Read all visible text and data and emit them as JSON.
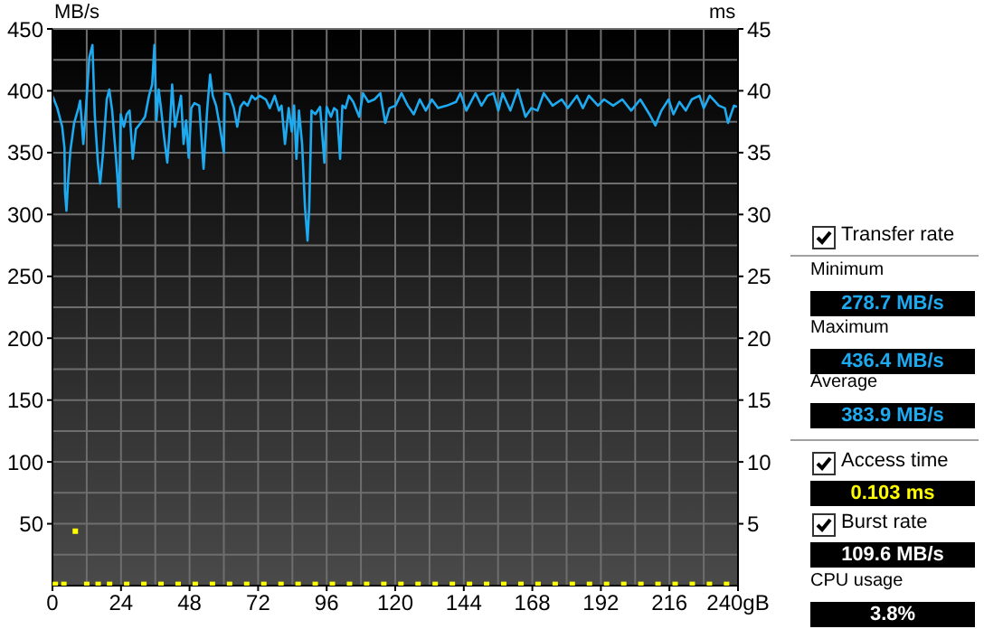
{
  "chart_data": {
    "type": "line",
    "ylabel": "MB/s",
    "y2label": "ms",
    "xlim": [
      0,
      240
    ],
    "xticks": [
      0,
      24,
      48,
      72,
      96,
      120,
      144,
      168,
      192,
      216,
      {
        "value": 240,
        "label": "240gB"
      }
    ],
    "ylim": [
      0,
      450
    ],
    "yticks": [
      50,
      100,
      150,
      200,
      250,
      300,
      350,
      400,
      450
    ],
    "y2lim": [
      0,
      45
    ],
    "y2ticks": [
      5,
      10,
      15,
      20,
      25,
      30,
      35,
      40,
      45
    ],
    "grid": true,
    "legend": false,
    "series": [
      {
        "color": "#1eaaf0",
        "x": [
          0,
          1.7,
          3.4,
          4.2,
          4.4,
          4.9,
          5.5,
          6.3,
          7.6,
          9.1,
          9.7,
          10.8,
          11.8,
          12.9,
          14,
          14.8,
          15.9,
          16.7,
          17.6,
          19,
          19.9,
          20.9,
          22.2,
          22.8,
          23.3,
          23.9,
          25,
          26,
          27,
          28.1,
          29.2,
          30.9,
          32.4,
          33.8,
          34.9,
          35.7,
          36.4,
          37.2,
          38,
          39.1,
          40.2,
          41,
          41.9,
          42.9,
          44,
          45,
          45.9,
          46.8,
          47.7,
          48.6,
          49.7,
          51.4,
          52.9,
          54.2,
          55.2,
          56.1,
          57.3,
          58.6,
          60,
          60.3,
          62,
          63.5,
          64.7,
          65.8,
          67,
          68.3,
          69.8,
          71,
          72.5,
          74.7,
          76.1,
          77.8,
          79.3,
          80.2,
          81.4,
          82.7,
          83.8,
          84.6,
          85.4,
          86.3,
          87.4,
          88.4,
          89.3,
          89.9,
          90.7,
          92,
          93.7,
          95.2,
          96,
          97.5,
          98.6,
          99.6,
          100.7,
          101.5,
          102.6,
          103.8,
          105.3,
          107.4,
          108.7,
          110.6,
          112.7,
          114.8,
          116.5,
          118,
          120.1,
          122.2,
          124.4,
          126.5,
          128.6,
          130.7,
          132.8,
          135,
          138.1,
          141.3,
          142.8,
          144.9,
          148.1,
          150.2,
          152.3,
          154.4,
          156.1,
          157.6,
          160.3,
          162.9,
          165.6,
          167.7,
          169.8,
          172,
          175.1,
          178.3,
          180.4,
          183.6,
          185.7,
          187.8,
          191,
          193.1,
          196.3,
          199.5,
          202.6,
          205.8,
          209,
          211.1,
          213.2,
          215.7,
          217.4,
          219.5,
          221.7,
          223.8,
          226.5,
          228,
          230.1,
          233.3,
          235.4,
          236.5,
          238.6,
          239.6
        ],
        "values": [
          396,
          386,
          371,
          354,
          318,
          303,
          328,
          352,
          374,
          386,
          392,
          357,
          388,
          427,
          437,
          381,
          342,
          325,
          347,
          393,
          401,
          384,
          347,
          328,
          306,
          381,
          371,
          381,
          384,
          345,
          369,
          374,
          379,
          396,
          405,
          437,
          376,
          401,
          386,
          362,
          342,
          367,
          405,
          371,
          384,
          396,
          357,
          376,
          346,
          386,
          390,
          388,
          337,
          386,
          413,
          396,
          388,
          371,
          350,
          398,
          397,
          386,
          371,
          387,
          391,
          388,
          396,
          393,
          396,
          393,
          386,
          396,
          384,
          388,
          357,
          386,
          367,
          388,
          345,
          384,
          357,
          306,
          279,
          306,
          384,
          381,
          387,
          342,
          387,
          379,
          386,
          384,
          345,
          388,
          386,
          396,
          391,
          379,
          398,
          391,
          393,
          398,
          374,
          386,
          388,
          398,
          388,
          381,
          393,
          384,
          393,
          386,
          388,
          391,
          398,
          384,
          398,
          388,
          396,
          398,
          384,
          398,
          384,
          401,
          379,
          386,
          384,
          398,
          388,
          393,
          386,
          396,
          386,
          396,
          388,
          393,
          388,
          393,
          384,
          393,
          381,
          372,
          384,
          393,
          381,
          391,
          384,
          393,
          396,
          386,
          396,
          388,
          386,
          374,
          388,
          387
        ]
      },
      {
        "type": "scatter",
        "axis": "y2",
        "color": "#ffff00",
        "marker": "square",
        "x": [
          1,
          4,
          8,
          12,
          16,
          20,
          26,
          32,
          38,
          44,
          50,
          56,
          62,
          68,
          74,
          80,
          86,
          92,
          98,
          104,
          110,
          116,
          122,
          128,
          134,
          140,
          146,
          152,
          158,
          164,
          170,
          176,
          182,
          188,
          194,
          200,
          206,
          212,
          218,
          224,
          230,
          236
        ],
        "values": [
          0.1,
          0.1,
          4.4,
          0.1,
          0.1,
          0.1,
          0.1,
          0.1,
          0.1,
          0.1,
          0.1,
          0.1,
          0.1,
          0.1,
          0.1,
          0.1,
          0.1,
          0.1,
          0.1,
          0.1,
          0.1,
          0.1,
          0.1,
          0.1,
          0.1,
          0.1,
          0.1,
          0.1,
          0.1,
          0.1,
          0.1,
          0.1,
          0.1,
          0.1,
          0.1,
          0.1,
          0.1,
          0.1,
          0.1,
          0.1,
          0.1,
          0.1
        ]
      }
    ],
    "annotations": [
      "Transfer rate",
      "Minimum",
      "278.7 MB/s",
      "Maximum",
      "436.4 MB/s",
      "Average",
      "383.9 MB/s",
      "Access time",
      "0.103 ms",
      "Burst rate",
      "109.6 MB/s",
      "CPU usage",
      "3.8%"
    ]
  }
}
